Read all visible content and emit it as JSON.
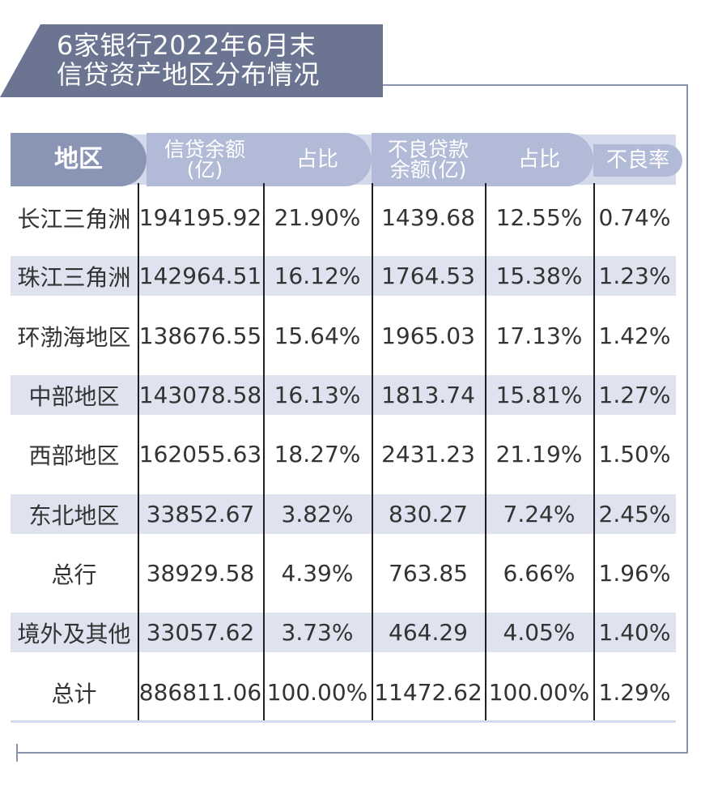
{
  "title_line1": "6家银行2022年6月末",
  "title_line2": "信贷资产地区分布情况",
  "headers": {
    "region": "地区",
    "loan_balance_line1": "信贷余额",
    "loan_balance_line2": "(亿)",
    "loan_share": "占比",
    "npl_balance_line1": "不良贷款",
    "npl_balance_line2": "余额(亿)",
    "npl_share": "占比",
    "npl_ratio": "不良率"
  },
  "rows": [
    {
      "region": "长江三角洲",
      "loan": "194195.92",
      "loan_share": "21.90%",
      "npl": "1439.68",
      "npl_share": "12.55%",
      "ratio": "0.74%"
    },
    {
      "region": "珠江三角洲",
      "loan": "142964.51",
      "loan_share": "16.12%",
      "npl": "1764.53",
      "npl_share": "15.38%",
      "ratio": "1.23%"
    },
    {
      "region": "环渤海地区",
      "loan": "138676.55",
      "loan_share": "15.64%",
      "npl": "1965.03",
      "npl_share": "17.13%",
      "ratio": "1.42%"
    },
    {
      "region": "中部地区",
      "loan": "143078.58",
      "loan_share": "16.13%",
      "npl": "1813.74",
      "npl_share": "15.81%",
      "ratio": "1.27%"
    },
    {
      "region": "西部地区",
      "loan": "162055.63",
      "loan_share": "18.27%",
      "npl": "2431.23",
      "npl_share": "21.19%",
      "ratio": "1.50%"
    },
    {
      "region": "东北地区",
      "loan": "33852.67",
      "loan_share": "3.82%",
      "npl": "830.27",
      "npl_share": "7.24%",
      "ratio": "2.45%"
    },
    {
      "region": "总行",
      "loan": "38929.58",
      "loan_share": "4.39%",
      "npl": "763.85",
      "npl_share": "6.66%",
      "ratio": "1.96%"
    },
    {
      "region": "境外及其他",
      "loan": "33057.62",
      "loan_share": "3.73%",
      "npl": "464.29",
      "npl_share": "4.05%",
      "ratio": "1.40%"
    },
    {
      "region": "总计",
      "loan": "886811.06",
      "loan_share": "100.00%",
      "npl": "11472.62",
      "npl_share": "100.00%",
      "ratio": "1.29%"
    }
  ],
  "colors": {
    "header_dark": "#8a95b5",
    "header_light": "#b1bad6",
    "stripe": "#dfe2ef",
    "title_bg": "#6b7591"
  },
  "chart_data": {
    "type": "table",
    "title": "6家银行2022年6月末 信贷资产地区分布情况",
    "columns": [
      "地区",
      "信贷余额(亿)",
      "占比",
      "不良贷款余额(亿)",
      "占比",
      "不良率"
    ],
    "rows": [
      [
        "长江三角洲",
        194195.92,
        "21.90%",
        1439.68,
        "12.55%",
        "0.74%"
      ],
      [
        "珠江三角洲",
        142964.51,
        "16.12%",
        1764.53,
        "15.38%",
        "1.23%"
      ],
      [
        "环渤海地区",
        138676.55,
        "15.64%",
        1965.03,
        "17.13%",
        "1.42%"
      ],
      [
        "中部地区",
        143078.58,
        "16.13%",
        1813.74,
        "15.81%",
        "1.27%"
      ],
      [
        "西部地区",
        162055.63,
        "18.27%",
        2431.23,
        "21.19%",
        "1.50%"
      ],
      [
        "东北地区",
        33852.67,
        "3.82%",
        830.27,
        "7.24%",
        "2.45%"
      ],
      [
        "总行",
        38929.58,
        "4.39%",
        763.85,
        "6.66%",
        "1.96%"
      ],
      [
        "境外及其他",
        33057.62,
        "3.73%",
        464.29,
        "4.05%",
        "1.40%"
      ],
      [
        "总计",
        886811.06,
        "100.00%",
        11472.62,
        "100.00%",
        "1.29%"
      ]
    ]
  }
}
